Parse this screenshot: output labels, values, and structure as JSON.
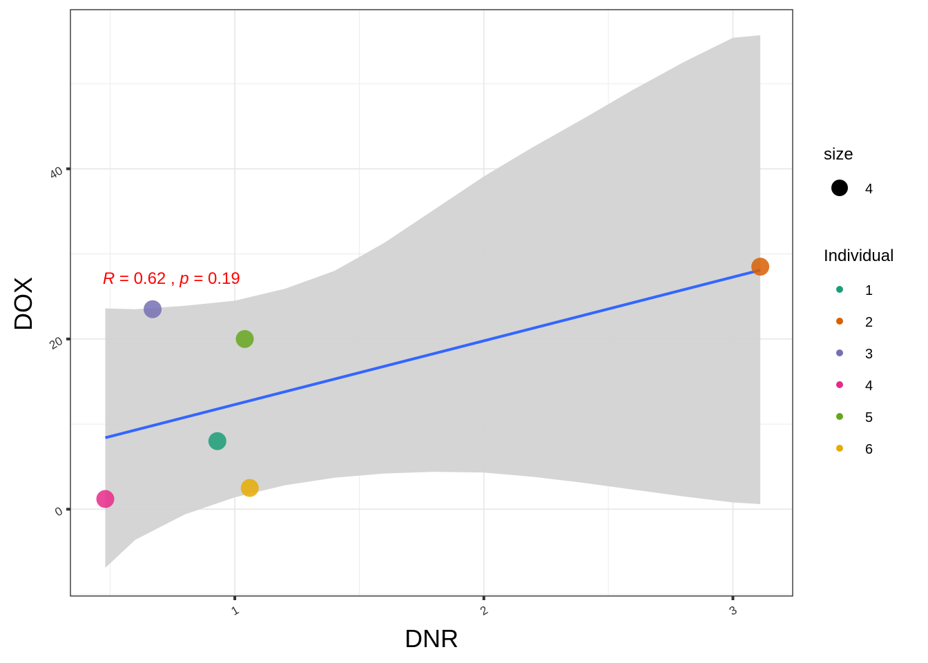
{
  "chart_data": {
    "type": "scatter",
    "xlabel": "DNR",
    "ylabel": "DOX",
    "xlim": [
      0.34,
      3.24
    ],
    "ylim": [
      -10.2,
      58.7
    ],
    "x_ticks": [
      1,
      2,
      3
    ],
    "y_ticks": [
      0,
      20,
      40
    ],
    "grid": true,
    "annotation": {
      "r_symbol": "R",
      "r_text": " = 0.62 , ",
      "p_symbol": "p",
      "p_text": " = 0.19",
      "x": 0.47,
      "y": 26.5,
      "color": "#FF0000"
    },
    "points": [
      {
        "individual": "1",
        "x": 0.93,
        "y": 8.0,
        "color": "#1B9E77"
      },
      {
        "individual": "2",
        "x": 3.11,
        "y": 28.5,
        "color": "#D95F02"
      },
      {
        "individual": "3",
        "x": 0.67,
        "y": 23.5,
        "color": "#7570B3"
      },
      {
        "individual": "4",
        "x": 0.48,
        "y": 1.2,
        "color": "#E7298A"
      },
      {
        "individual": "5",
        "x": 1.04,
        "y": 20.0,
        "color": "#66A61E"
      },
      {
        "individual": "6",
        "x": 1.06,
        "y": 2.5,
        "color": "#E6AB02"
      }
    ],
    "regression": {
      "color": "#3366FF",
      "x": [
        0.48,
        3.11
      ],
      "y": [
        8.4,
        28.1
      ]
    },
    "confidence_band": {
      "fill": "#D3D3D3",
      "x": [
        0.48,
        0.6,
        0.8,
        1.0,
        1.2,
        1.4,
        1.6,
        1.8,
        2.0,
        2.2,
        2.4,
        2.6,
        2.8,
        3.0,
        3.11
      ],
      "lower": [
        -6.9,
        -3.6,
        -0.6,
        1.4,
        2.8,
        3.7,
        4.2,
        4.4,
        4.3,
        3.8,
        3.1,
        2.3,
        1.5,
        0.8,
        0.6
      ],
      "upper": [
        23.6,
        23.5,
        23.9,
        24.5,
        25.9,
        28.0,
        31.3,
        35.2,
        39.1,
        42.6,
        45.9,
        49.3,
        52.5,
        55.4,
        55.7
      ]
    }
  },
  "legend": {
    "size_title": "size",
    "size_items": [
      {
        "label": "4"
      }
    ],
    "individual_title": "Individual",
    "individual_items": [
      {
        "label": "1",
        "color": "#1B9E77"
      },
      {
        "label": "2",
        "color": "#D95F02"
      },
      {
        "label": "3",
        "color": "#7570B3"
      },
      {
        "label": "4",
        "color": "#E7298A"
      },
      {
        "label": "5",
        "color": "#66A61E"
      },
      {
        "label": "6",
        "color": "#E6AB02"
      }
    ]
  }
}
